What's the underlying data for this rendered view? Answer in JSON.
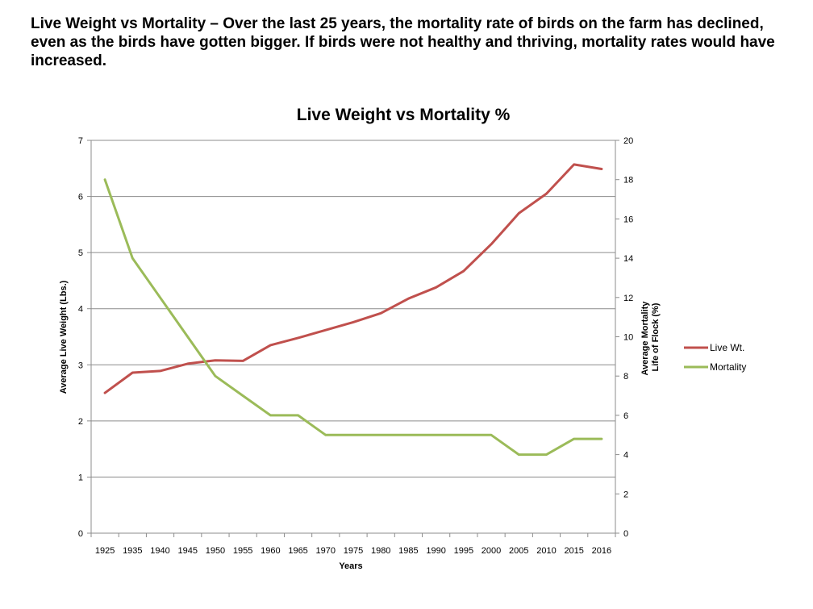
{
  "headline": "Live Weight vs Mortality – Over the last 25 years, the mortality rate of birds on the farm has declined, even as the birds have gotten bigger. If birds were not healthy and thriving, mortality rates would have increased.",
  "chart_data": {
    "type": "line",
    "title": "Live Weight vs Mortality %",
    "xlabel": "Years",
    "ylabel": "Average Live Weight (Lbs.)",
    "ylabel_right": [
      "Average Mortality",
      "Life of Flock (%)"
    ],
    "categories": [
      "1925",
      "1935",
      "1940",
      "1945",
      "1950",
      "1955",
      "1960",
      "1965",
      "1970",
      "1975",
      "1980",
      "1985",
      "1990",
      "1995",
      "2000",
      "2005",
      "2010",
      "2015",
      "2016"
    ],
    "ylim": [
      0,
      7
    ],
    "ylim_right": [
      0,
      20
    ],
    "yticks": [
      "0",
      "1",
      "2",
      "3",
      "4",
      "5",
      "6",
      "7"
    ],
    "yticks_right": [
      "0",
      "2",
      "4",
      "6",
      "8",
      "10",
      "12",
      "14",
      "16",
      "18",
      "20"
    ],
    "grid": true,
    "legend_position": "right",
    "series": [
      {
        "name": "Live Wt.",
        "axis": "left",
        "color": "#C0504D",
        "values": [
          2.5,
          2.86,
          2.89,
          3.02,
          3.08,
          3.07,
          3.35,
          3.48,
          3.62,
          3.76,
          3.92,
          4.18,
          4.38,
          4.67,
          5.15,
          5.7,
          6.05,
          6.57,
          6.49
        ]
      },
      {
        "name": "Mortality",
        "axis": "right",
        "color": "#9BBB59",
        "values": [
          18,
          14,
          12,
          10,
          8,
          7,
          6,
          6,
          5,
          5,
          5,
          5,
          5,
          5,
          5,
          4,
          4,
          4.8,
          4.8
        ]
      }
    ]
  }
}
